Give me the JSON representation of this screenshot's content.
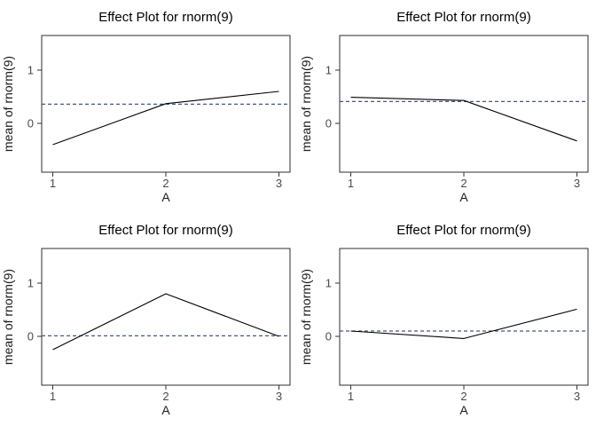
{
  "colors": {
    "background": "#ffffff",
    "title": "#000000",
    "axis_label": "#1a1a1a",
    "tick_label": "#4a4a4a",
    "tick_mark": "#333333",
    "panel_border": "#2e2e2e",
    "effect_line": "#000000",
    "reference_line": "#44597e"
  },
  "chart_data": [
    {
      "type": "line",
      "position": "top-left",
      "title": "Effect Plot for rnorm(9)",
      "xlabel": "A",
      "ylabel": "mean of rnorm(9)",
      "x": [
        1,
        2,
        3
      ],
      "values": [
        -0.4,
        0.37,
        0.6
      ],
      "reference_line_y": 0.36,
      "reference_line_style": "dashed",
      "xticks": [
        1,
        2,
        3
      ],
      "yticks": [
        0,
        1
      ],
      "xlim": [
        0.9,
        3.1
      ],
      "ylim": [
        -0.92,
        1.65
      ],
      "grid": false,
      "legend": "none"
    },
    {
      "type": "line",
      "position": "top-right",
      "title": "Effect Plot for rnorm(9)",
      "xlabel": "A",
      "ylabel": "mean of rnorm(9)",
      "x": [
        1,
        2,
        3
      ],
      "values": [
        0.49,
        0.43,
        -0.33
      ],
      "reference_line_y": 0.41,
      "reference_line_style": "dashed",
      "xticks": [
        1,
        2,
        3
      ],
      "yticks": [
        0,
        1
      ],
      "xlim": [
        0.9,
        3.1
      ],
      "ylim": [
        -0.92,
        1.65
      ],
      "grid": false,
      "legend": "none"
    },
    {
      "type": "line",
      "position": "bottom-left",
      "title": "Effect Plot for rnorm(9)",
      "xlabel": "A",
      "ylabel": "mean of rnorm(9)",
      "x": [
        1,
        2,
        3
      ],
      "values": [
        -0.25,
        0.8,
        0.0
      ],
      "reference_line_y": 0.01,
      "reference_line_style": "dashed",
      "xticks": [
        1,
        2,
        3
      ],
      "yticks": [
        0,
        1
      ],
      "xlim": [
        0.9,
        3.1
      ],
      "ylim": [
        -0.92,
        1.65
      ],
      "grid": false,
      "legend": "none"
    },
    {
      "type": "line",
      "position": "bottom-right",
      "title": "Effect Plot for rnorm(9)",
      "xlabel": "A",
      "ylabel": "mean of rnorm(9)",
      "x": [
        1,
        2,
        3
      ],
      "values": [
        0.1,
        -0.04,
        0.51
      ],
      "reference_line_y": 0.1,
      "reference_line_style": "dashed",
      "xticks": [
        1,
        2,
        3
      ],
      "yticks": [
        0,
        1
      ],
      "xlim": [
        0.9,
        3.1
      ],
      "ylim": [
        -0.92,
        1.65
      ],
      "grid": false,
      "legend": "none"
    }
  ]
}
